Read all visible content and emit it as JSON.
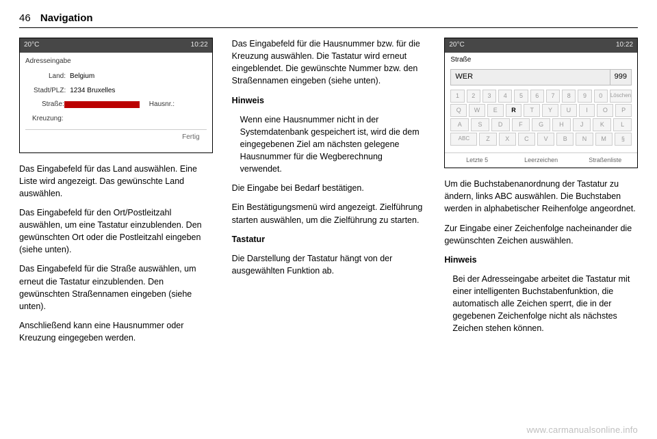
{
  "header": {
    "page_no": "46",
    "section": "Navigation"
  },
  "ss1": {
    "temp": "20°C",
    "time": "10:22",
    "bt": "0",
    "title": "Adresseingabe",
    "land_k": "Land:",
    "land_v": "Belgium",
    "stadt_k": "Stadt/PLZ:",
    "stadt_v": "1234 Bruxelles",
    "str_k": "Straße:",
    "haus_k": "Hausnr.:",
    "kreuz_k": "Kreuzung:",
    "fertig": "Fertig"
  },
  "col1": {
    "p1": "Das Eingabefeld für das Land auswählen. Eine Liste wird angezeigt. Das gewünschte Land auswählen.",
    "p2": "Das Eingabefeld für den Ort/Postleitzahl auswählen, um eine Tastatur einzublenden. Den gewünschten Ort oder die Postleitzahl eingeben (siehe unten).",
    "p3": "Das Eingabefeld für die Straße auswählen, um erneut die Tastatur einzublenden. Den gewünschten Straßennamen eingeben (siehe unten).",
    "p4": "Anschließend kann eine Hausnummer oder Kreuzung eingegeben werden."
  },
  "col2": {
    "p1": "Das Eingabefeld für die Hausnummer bzw. für die Kreuzung auswählen. Die Tastatur wird erneut eingeblendet. Die gewünschte Nummer bzw. den Straßennamen eingeben (siehe unten).",
    "note_h": "Hinweis",
    "note": "Wenn eine Hausnummer nicht in der Systemdatenbank gespeichert ist, wird die dem eingegebenen Ziel am nächsten gelegene Hausnummer für die Wegberechnung verwendet.",
    "p2": "Die Eingabe bei Bedarf bestätigen.",
    "p3": "Ein Bestätigungsmenü wird angezeigt. Zielführung starten auswählen, um die Zielführung zu starten.",
    "h2": "Tastatur",
    "p4": "Die Darstellung der Tastatur hängt von der ausgewählten Funktion ab."
  },
  "ss2": {
    "temp": "20°C",
    "time": "10:22",
    "bt": "0",
    "title": "Straße",
    "typed": "WER",
    "num": "999",
    "r1": [
      "1",
      "2",
      "3",
      "4",
      "5",
      "6",
      "7",
      "8",
      "9",
      "0",
      "Löschen"
    ],
    "r2": [
      "Q",
      "W",
      "E",
      "R",
      "T",
      "Y",
      "U",
      "I",
      "O",
      "P"
    ],
    "r3": [
      "A",
      "S",
      "D",
      "F",
      "G",
      "H",
      "J",
      "K",
      "L"
    ],
    "r4": [
      "ABC",
      "Z",
      "X",
      "C",
      "V",
      "B",
      "N",
      "M",
      "§"
    ],
    "active": [
      "R"
    ],
    "bot": [
      "Letzte 5",
      "Leerzeichen",
      "Straßenliste"
    ]
  },
  "col3": {
    "p1": "Um die Buchstabenanordnung der Tastatur zu ändern, links ABC auswählen. Die Buchstaben werden in alphabetischer Reihenfolge angeordnet.",
    "p2": "Zur Eingabe einer Zeichenfolge nacheinander die gewünschten Zeichen auswählen.",
    "note_h": "Hinweis",
    "note": "Bei der Adresseingabe arbeitet die Tastatur mit einer intelligenten Buchstabenfunktion, die automatisch alle Zeichen sperrt, die in der gegebenen Zeichenfolge nicht als nächstes Zeichen stehen können."
  },
  "watermark": "www.carmanualsonline.info"
}
